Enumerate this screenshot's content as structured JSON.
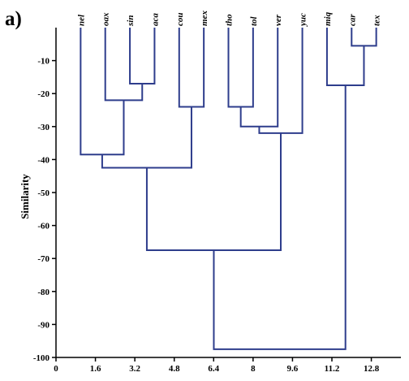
{
  "panel_label": "a)",
  "chart_data": {
    "type": "dendrogram",
    "ylabel": "Similarity",
    "xlabel": "",
    "xlim": [
      0,
      14
    ],
    "ylim": [
      -100,
      0
    ],
    "y_ticks": [
      "-10",
      "-20",
      "-30",
      "-40",
      "-50",
      "-60",
      "-70",
      "-80",
      "-90",
      "-100"
    ],
    "x_ticks": [
      "0",
      "1.6",
      "3.2",
      "4.8",
      "6.4",
      "8",
      "9.6",
      "11.2",
      "12.8"
    ],
    "leaves": [
      {
        "label": "nel",
        "x": 1.0
      },
      {
        "label": "oax",
        "x": 2.0
      },
      {
        "label": "sin",
        "x": 3.0
      },
      {
        "label": "aca",
        "x": 4.0
      },
      {
        "label": "cou",
        "x": 5.0
      },
      {
        "label": "mex",
        "x": 6.0
      },
      {
        "label": "tho",
        "x": 7.0
      },
      {
        "label": "tol",
        "x": 8.0
      },
      {
        "label": "ver",
        "x": 9.0
      },
      {
        "label": "yuc",
        "x": 10.0
      },
      {
        "label": "miq",
        "x": 11.0
      },
      {
        "label": "car",
        "x": 12.0
      },
      {
        "label": "tex",
        "x": 13.0
      }
    ],
    "merges": [
      {
        "left": "leaf:car",
        "right": "leaf:tex",
        "height": -5.5
      },
      {
        "left": "leaf:sin",
        "right": "leaf:aca",
        "height": -17
      },
      {
        "left": "leaf:miq",
        "right": "merge:0",
        "height": -17.5
      },
      {
        "left": "leaf:oax",
        "right": "merge:1",
        "height": -22
      },
      {
        "left": "leaf:tho",
        "right": "leaf:tol",
        "height": -24
      },
      {
        "left": "leaf:cou",
        "right": "leaf:mex",
        "height": -24
      },
      {
        "left": "merge:4",
        "right": "leaf:ver",
        "height": -30
      },
      {
        "left": "merge:6",
        "right": "leaf:yuc",
        "height": -32
      },
      {
        "left": "leaf:nel",
        "right": "merge:3",
        "height": -38.5
      },
      {
        "left": "merge:8",
        "right": "merge:5",
        "height": -42.5
      },
      {
        "left": "merge:9",
        "right": "merge:7",
        "height": -67.5
      },
      {
        "left": "merge:10",
        "right": "merge:2",
        "height": -97.5
      }
    ],
    "line_color": "#2e3d8c",
    "grid": false
  }
}
